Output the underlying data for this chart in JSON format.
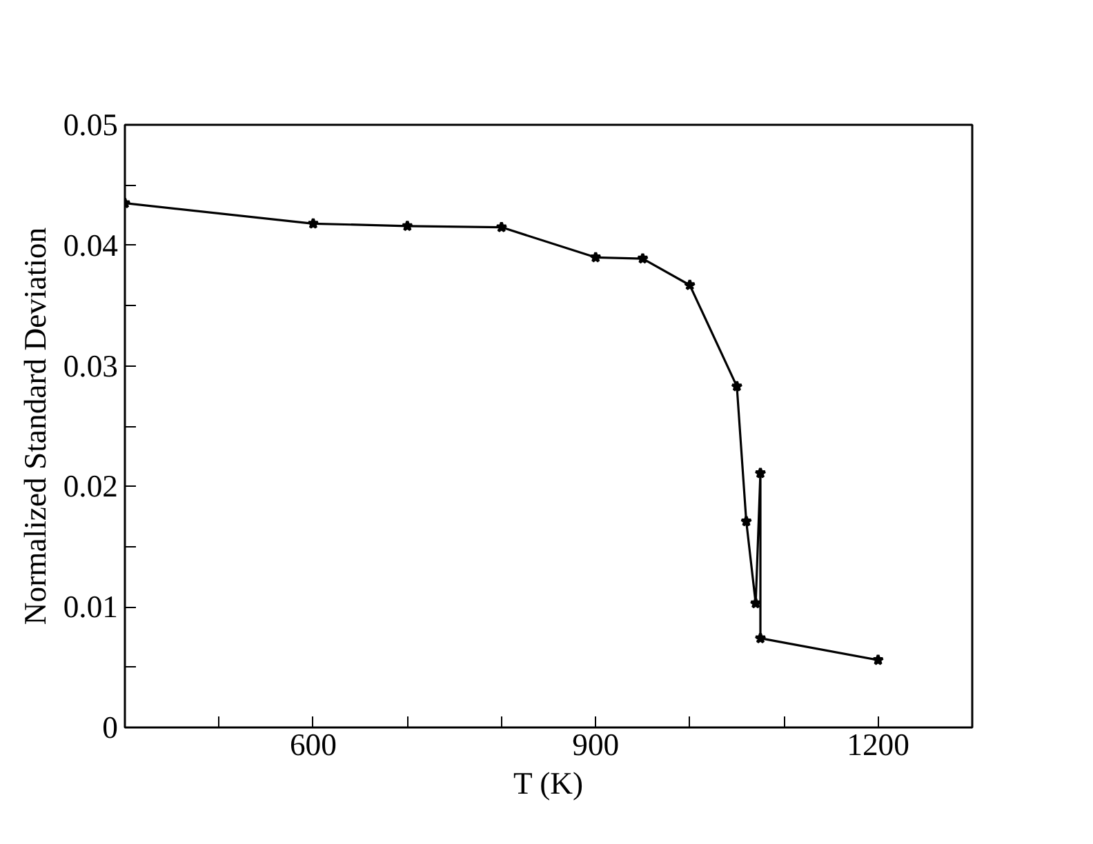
{
  "chart_data": {
    "type": "line",
    "xlabel": "T (K)",
    "ylabel": "Normalized Standard Deviation",
    "x": [
      400,
      600,
      700,
      800,
      900,
      950,
      1000,
      1050,
      1060,
      1070,
      1075,
      1075,
      1200
    ],
    "series": [
      {
        "color": "#000000",
        "values": [
          0.0435,
          0.0418,
          0.0416,
          0.0415,
          0.039,
          0.0389,
          0.0367,
          0.0283,
          0.0171,
          0.0103,
          0.0211,
          0.0074,
          0.0056
        ]
      }
    ],
    "xlim": [
      400,
      1300
    ],
    "xticks": [
      {
        "value": 400,
        "label": null
      },
      {
        "value": 500,
        "label": null
      },
      600,
      {
        "value": 700,
        "label": null
      },
      {
        "value": 800,
        "label": null
      },
      900,
      {
        "value": 1000,
        "label": null
      },
      {
        "value": 1100,
        "label": null
      },
      1200,
      {
        "value": 1300,
        "label": null
      }
    ],
    "ylim": [
      0,
      0.05
    ],
    "yticks": [
      0,
      {
        "value": 0.005,
        "label": null
      },
      0.01,
      {
        "value": 0.015,
        "label": null
      },
      0.02,
      {
        "value": 0.025,
        "label": null
      },
      0.03,
      {
        "value": 0.035,
        "label": null
      },
      0.04,
      {
        "value": 0.045,
        "label": null
      },
      0.05
    ],
    "marker": "star",
    "line_style": "solid",
    "grid": false
  }
}
